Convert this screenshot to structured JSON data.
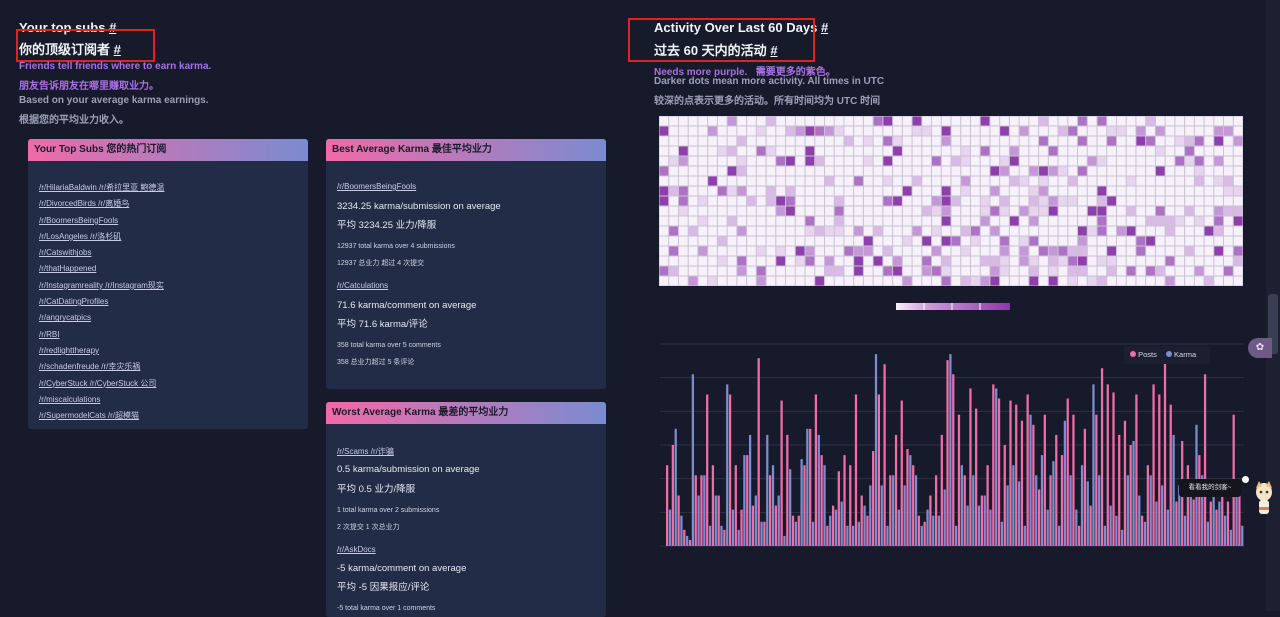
{
  "left_header": {
    "title_en": "Your top subs",
    "title_cn": "你的顶级订阅者",
    "hash": "#",
    "line1": "Friends tell friends where to earn karma.",
    "line1_cn": "朋友告诉朋友在哪里赚取业力。",
    "line2": "Based on your average karma earnings.",
    "line2_cn": "根据您的平均业力收入。"
  },
  "top_subs": {
    "header": "Your Top Subs  您的热门订阅",
    "items": [
      "/r/HilariaBaldwin  /r/希拉里亚 鲍德温",
      "/r/DivorcedBirds  /r/离婚鸟",
      "/r/BoomersBeingFools",
      "/r/LosAngeles  /r/洛杉矶",
      "/r/Catswithjobs",
      "/r/thatHappened",
      "/r/Instagramreality  /r/Instagram现实",
      "/r/CatDatingProfiles",
      "/r/angrycatpics",
      "/r/RBI",
      "/r/redlighttherapy",
      "/r/schadenfreude  /r/幸灾乐祸",
      "/r/CyberStuck  /r/CyberStuck 公司",
      "/r/miscalculations",
      "/r/SupermodelCats  /r/超模猫"
    ]
  },
  "best": {
    "header": "Best Average Karma  最佳平均业力",
    "s1": {
      "link": "/r/BoomersBeingFools",
      "avg": "3234.25 karma/submission on average",
      "avg_cn": "平均 3234.25 业力/降服",
      "total": "12937 total karma over 4 submissions",
      "total_cn": "12937 总业力 超过 4 次提交"
    },
    "s2": {
      "link": "/r/Catculations",
      "avg": "71.6 karma/comment on average",
      "avg_cn": "平均 71.6 karma/评论",
      "total": "358 total karma over 5 comments",
      "total_cn": "358 总业力超过 5 条评论"
    }
  },
  "worst": {
    "header": "Worst Average Karma  最差的平均业力",
    "s1": {
      "link": "/r/Scams  /r/诈骗",
      "avg": "0.5 karma/submission on average",
      "avg_cn": "平均 0.5 业力/降服",
      "total": "1 total karma over 2 submissions",
      "total_cn": "2 次提交 1 次总业力"
    },
    "s2": {
      "link": "/r/AskDocs",
      "avg": "-5 karma/comment on average",
      "avg_cn": "平均 -5 因果报应/评论",
      "total": "-5 total karma over 1 comments"
    }
  },
  "activity": {
    "title_en": "Activity Over Last 60 Days",
    "title_cn": "过去 60 天内的活动",
    "hash": "#",
    "purple_note": "Needs more purple.",
    "purple_note_cn": "需要更多的紫色。",
    "desc": "Darker dots mean more activity. All times in UTC",
    "desc_cn": "较深的点表示更多的活动。所有时间均为 UTC 时间"
  },
  "legend": {
    "posts": "Posts",
    "karma": "Karma"
  },
  "colors": {
    "posts": "#f26ca7",
    "karma": "#7b8ed0",
    "heat_low": "#f3ebf8",
    "heat_high": "#7a2a9a"
  },
  "side_button_icon": "ai-assistant-icon",
  "tooltip": "看看我的剑客~",
  "chart_data": {
    "type": "bar",
    "series": [
      {
        "name": "Posts",
        "values": [
          40,
          50,
          25,
          8,
          3,
          35,
          35,
          75,
          40,
          25,
          8,
          75,
          40,
          18,
          45,
          20,
          93,
          12,
          35,
          20,
          72,
          55,
          15,
          15,
          40,
          58,
          75,
          45,
          10,
          20,
          37,
          45,
          40,
          75,
          25,
          15,
          47,
          75,
          90,
          35,
          55,
          72,
          48,
          40,
          15,
          12,
          25,
          35,
          55,
          92,
          85,
          65,
          35,
          78,
          68,
          25,
          40,
          80,
          73,
          50,
          72,
          70,
          62,
          75,
          60,
          28,
          65,
          35,
          55,
          45,
          73,
          65,
          10,
          58,
          20,
          65,
          88,
          80,
          76,
          55,
          62,
          50,
          75,
          15,
          40,
          80,
          75,
          92,
          70,
          22,
          52,
          40,
          23,
          45,
          85,
          22,
          18,
          25,
          22,
          65,
          30
        ]
      },
      {
        "name": "Karma",
        "values": [
          18,
          58,
          15,
          5,
          85,
          25,
          35,
          10,
          25,
          10,
          80,
          18,
          8,
          45,
          55,
          25,
          12,
          55,
          40,
          25,
          5,
          38,
          12,
          43,
          58,
          12,
          55,
          40,
          15,
          18,
          22,
          10,
          10,
          12,
          20,
          30,
          95,
          30,
          10,
          35,
          18,
          30,
          45,
          35,
          10,
          18,
          15,
          15,
          28,
          95,
          10,
          40,
          20,
          35,
          20,
          25,
          18,
          78,
          12,
          30,
          40,
          32,
          10,
          65,
          35,
          45,
          18,
          42,
          10,
          62,
          35,
          18,
          40,
          32,
          80,
          35,
          10,
          20,
          15,
          8,
          35,
          52,
          25,
          12,
          35,
          22,
          30,
          18,
          55,
          30,
          15,
          25,
          60,
          35,
          12,
          28,
          22,
          15,
          8,
          25,
          10
        ]
      }
    ],
    "ylim": [
      0,
      100
    ],
    "grid": true,
    "legend": "top-right"
  }
}
